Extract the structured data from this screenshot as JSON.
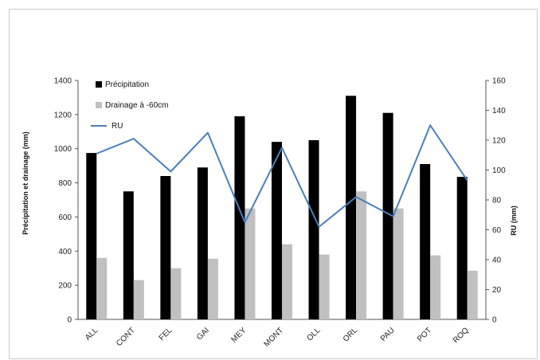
{
  "chart_data": {
    "type": "bar",
    "categories": [
      "ALL",
      "CONT",
      "FEL",
      "GAI",
      "MEY",
      "MONT",
      "OLL",
      "ORL",
      "PAU",
      "POT",
      "ROQ"
    ],
    "series": [
      {
        "name": "Précipitation",
        "kind": "bar",
        "axis": "left",
        "color": "#000000",
        "values": [
          975,
          750,
          840,
          890,
          1190,
          1040,
          1050,
          1310,
          1210,
          910,
          835
        ]
      },
      {
        "name": "Drainage à -60cm",
        "kind": "bar",
        "axis": "left",
        "color": "#c0c0c0",
        "values": [
          360,
          230,
          300,
          355,
          650,
          440,
          380,
          750,
          650,
          375,
          285
        ]
      },
      {
        "name": "RU",
        "kind": "line",
        "axis": "right",
        "color": "#4a7ebb",
        "values": [
          111,
          121,
          99,
          125,
          65,
          115,
          62,
          82,
          69,
          130,
          93
        ]
      }
    ],
    "ylabel": "Précipitation et drainage (mm)",
    "y2label": "RU (mm)",
    "ylim": [
      0,
      1400
    ],
    "y2lim": [
      0,
      160
    ],
    "yticks": [
      "0",
      "200",
      "400",
      "600",
      "800",
      "1000",
      "1200",
      "1400"
    ],
    "y2ticks": [
      "0",
      "20",
      "40",
      "60",
      "80",
      "100",
      "120",
      "140",
      "160"
    ],
    "legend": "top-left",
    "grid": false
  }
}
